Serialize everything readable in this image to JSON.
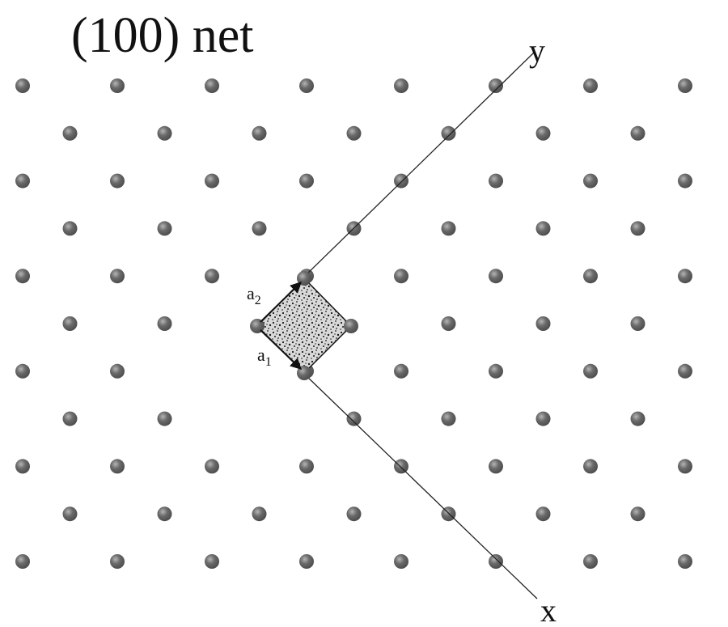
{
  "title": "(100) net",
  "axes": {
    "x_label": "x",
    "y_label": "y"
  },
  "vectors": [
    {
      "base": "a",
      "sub": "1"
    },
    {
      "base": "a",
      "sub": "2"
    }
  ],
  "lattice": {
    "rows": 11,
    "even_row_columns": 8,
    "odd_row_columns": 7,
    "atom_color": "#4a4a4a",
    "atom_highlight": "#b5b5b5"
  },
  "unit_cell": {
    "fill_color": "#d9d9d9",
    "stipple_color": "#1a1a1a"
  }
}
